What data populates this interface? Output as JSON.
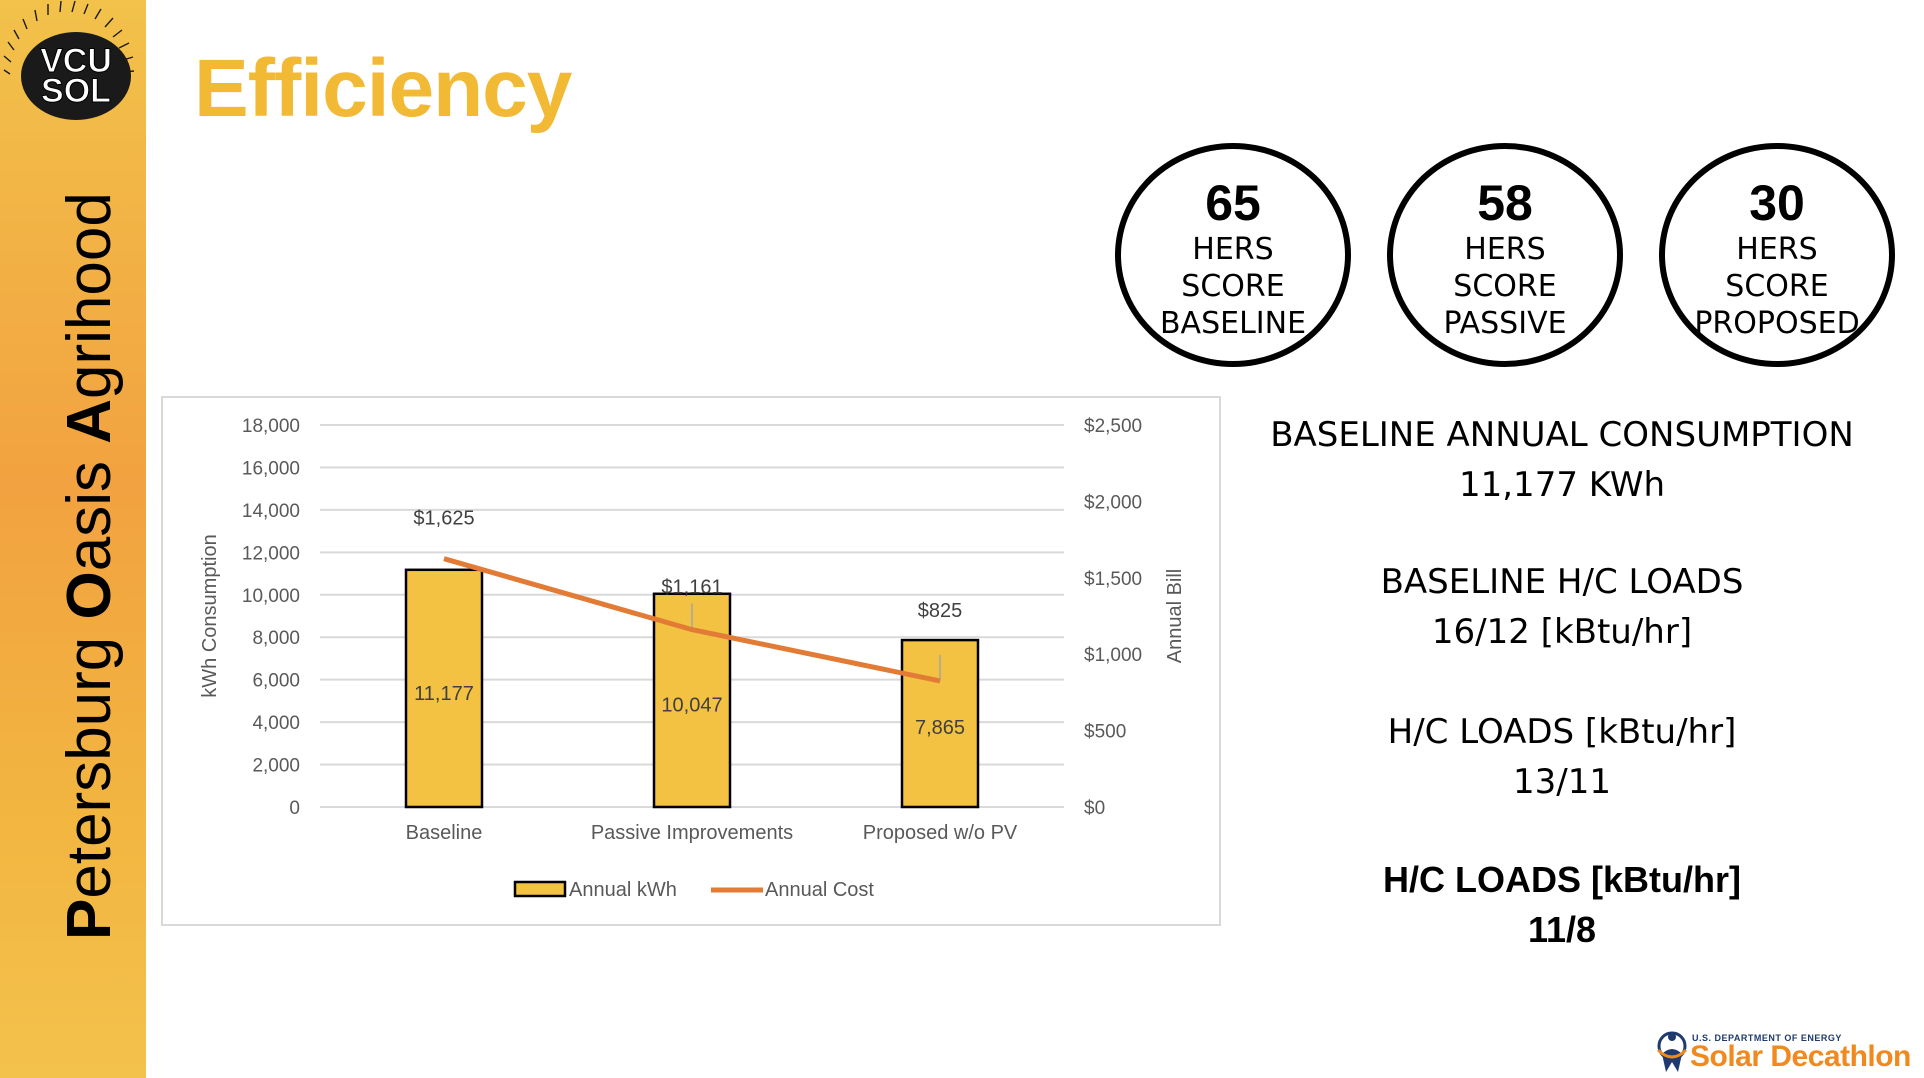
{
  "sidebar": {
    "logo_line1": "VCU",
    "logo_line2": "SOL",
    "title_parts": [
      {
        "bold": "P",
        "rest": "etersburg "
      },
      {
        "bold": "O",
        "rest": "asis "
      },
      {
        "bold": "A",
        "rest": "grihood"
      }
    ]
  },
  "page_title": "Efficiency",
  "hers": [
    {
      "score": "65",
      "line1": "HERS",
      "line2": "SCORE",
      "line3": "BASELINE"
    },
    {
      "score": "58",
      "line1": "HERS",
      "line2": "SCORE",
      "line3": "PASSIVE"
    },
    {
      "score": "30",
      "line1": "HERS",
      "line2": "SCORE",
      "line3": "PROPOSED"
    }
  ],
  "stats": [
    {
      "title": "BASELINE ANNUAL CONSUMPTION",
      "value": "11,177 KWh",
      "bold": false
    },
    {
      "title": "BASELINE H/C LOADS",
      "value": "16/12 [kBtu/hr]",
      "bold": false
    },
    {
      "title": "H/C LOADS [kBtu/hr]",
      "value": "13/11",
      "bold": false
    },
    {
      "title": "H/C LOADS [kBtu/hr]",
      "value": "11/8",
      "bold": true
    }
  ],
  "colors": {
    "bar": "#f3c242",
    "line": "#e27b35",
    "title": "#f2b935",
    "gridline": "#d9d9d9",
    "axis_text": "#595959"
  },
  "chart_data": {
    "type": "bar",
    "categories": [
      "Baseline",
      "Passive Improvements",
      "Proposed w/o PV"
    ],
    "series": [
      {
        "name": "Annual kWh",
        "type": "bar",
        "axis": "left",
        "values": [
          11177,
          10047,
          7865
        ],
        "labels": [
          "11,177",
          "10,047",
          "7,865"
        ]
      },
      {
        "name": "Annual Cost",
        "type": "line",
        "axis": "right",
        "values": [
          1625,
          1161,
          825
        ],
        "labels": [
          "$1,625",
          "$1,161",
          "$825"
        ]
      }
    ],
    "ylabel": "kWh Consumption",
    "y2label": "Annual Bill",
    "ylim": [
      0,
      18000
    ],
    "y2lim": [
      0,
      2500
    ],
    "yticks": [
      0,
      2000,
      4000,
      6000,
      8000,
      10000,
      12000,
      14000,
      16000,
      18000
    ],
    "yticklabels": [
      "0",
      "2,000",
      "4,000",
      "6,000",
      "8,000",
      "10,000",
      "12,000",
      "14,000",
      "16,000",
      "18,000"
    ],
    "y2ticks": [
      0,
      500,
      1000,
      1500,
      2000,
      2500
    ],
    "y2ticklabels": [
      "$0",
      "$500",
      "$1,000",
      "$1,500",
      "$2,000",
      "$2,500"
    ],
    "legend": "bottom",
    "grid": true
  },
  "doe": {
    "small": "U.S. DEPARTMENT OF ENERGY",
    "big": "Solar Decathlon"
  }
}
